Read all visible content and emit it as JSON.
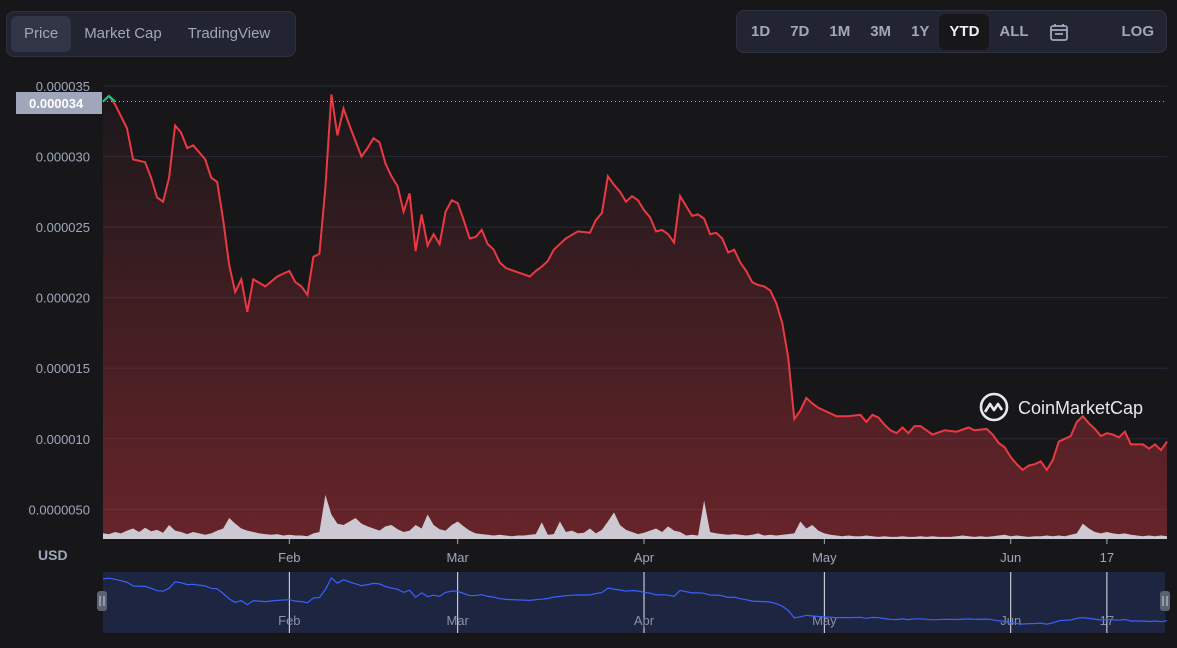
{
  "tabs": [
    {
      "label": "Price",
      "active": true
    },
    {
      "label": "Market Cap",
      "active": false
    },
    {
      "label": "TradingView",
      "active": false
    }
  ],
  "ranges": [
    {
      "label": "1D"
    },
    {
      "label": "7D"
    },
    {
      "label": "1M"
    },
    {
      "label": "3M"
    },
    {
      "label": "1Y"
    },
    {
      "label": "YTD",
      "active": true
    },
    {
      "label": "ALL"
    }
  ],
  "log_label": "LOG",
  "currency_label": "USD",
  "watermark": "CoinMarketCap",
  "current_price_label": "0.000034",
  "colors": {
    "line": "#ea3943",
    "line_up": "#16c784",
    "volume": "#d8dbe6",
    "navigator": "#3861fb",
    "background": "#17171a"
  },
  "chart_data": {
    "type": "line",
    "y_ticks": [
      "0.000035",
      "0.000030",
      "0.000025",
      "0.000020",
      "0.000015",
      "0.000010",
      "0.0000050"
    ],
    "y_tick_values": [
      3.5e-05,
      3e-05,
      2.5e-05,
      2e-05,
      1.5e-05,
      1e-05,
      5e-06
    ],
    "ylim": [
      2.9e-06,
      3.5e-05
    ],
    "x_ticks": [
      "Feb",
      "Mar",
      "Apr",
      "May",
      "Jun",
      "17"
    ],
    "x_tick_values": [
      31,
      59,
      90,
      120,
      151,
      167
    ],
    "xlim": [
      0,
      177
    ],
    "price_points": [
      [
        0,
        3.39e-05
      ],
      [
        1,
        3.43e-05
      ],
      [
        2,
        3.37e-05
      ],
      [
        4,
        3.2e-05
      ],
      [
        5,
        2.98e-05
      ],
      [
        7,
        2.96e-05
      ],
      [
        8,
        2.85e-05
      ],
      [
        9,
        2.71e-05
      ],
      [
        10,
        2.68e-05
      ],
      [
        11,
        2.85e-05
      ],
      [
        12,
        3.22e-05
      ],
      [
        13,
        3.17e-05
      ],
      [
        14,
        3.06e-05
      ],
      [
        15,
        3.08e-05
      ],
      [
        17,
        2.98e-05
      ],
      [
        18,
        2.85e-05
      ],
      [
        19,
        2.82e-05
      ],
      [
        20,
        2.55e-05
      ],
      [
        21,
        2.23e-05
      ],
      [
        22,
        2.04e-05
      ],
      [
        23,
        2.13e-05
      ],
      [
        24,
        1.9e-05
      ],
      [
        25,
        2.13e-05
      ],
      [
        27,
        2.08e-05
      ],
      [
        29,
        2.15e-05
      ],
      [
        31,
        2.19e-05
      ],
      [
        32,
        2.11e-05
      ],
      [
        33,
        2.08e-05
      ],
      [
        34,
        2.02e-05
      ],
      [
        35,
        2.29e-05
      ],
      [
        36,
        2.31e-05
      ],
      [
        37,
        2.78e-05
      ],
      [
        38,
        3.44e-05
      ],
      [
        39,
        3.15e-05
      ],
      [
        40,
        3.34e-05
      ],
      [
        41,
        3.22e-05
      ],
      [
        42,
        3.11e-05
      ],
      [
        43,
        3e-05
      ],
      [
        44,
        3.06e-05
      ],
      [
        45,
        3.13e-05
      ],
      [
        46,
        3.1e-05
      ],
      [
        47,
        2.95e-05
      ],
      [
        48,
        2.86e-05
      ],
      [
        49,
        2.79e-05
      ],
      [
        50,
        2.61e-05
      ],
      [
        51,
        2.74e-05
      ],
      [
        52,
        2.33e-05
      ],
      [
        53,
        2.59e-05
      ],
      [
        54,
        2.37e-05
      ],
      [
        55,
        2.45e-05
      ],
      [
        56,
        2.38e-05
      ],
      [
        57,
        2.61e-05
      ],
      [
        58,
        2.69e-05
      ],
      [
        59,
        2.67e-05
      ],
      [
        60,
        2.55e-05
      ],
      [
        61,
        2.42e-05
      ],
      [
        62,
        2.43e-05
      ],
      [
        63,
        2.48e-05
      ],
      [
        64,
        2.38e-05
      ],
      [
        65,
        2.34e-05
      ],
      [
        66,
        2.25e-05
      ],
      [
        67,
        2.21e-05
      ],
      [
        69,
        2.18e-05
      ],
      [
        71,
        2.15e-05
      ],
      [
        72,
        2.19e-05
      ],
      [
        73,
        2.22e-05
      ],
      [
        74,
        2.26e-05
      ],
      [
        75,
        2.34e-05
      ],
      [
        77,
        2.42e-05
      ],
      [
        79,
        2.47e-05
      ],
      [
        81,
        2.46e-05
      ],
      [
        82,
        2.55e-05
      ],
      [
        83,
        2.6e-05
      ],
      [
        84,
        2.86e-05
      ],
      [
        85,
        2.8e-05
      ],
      [
        86,
        2.75e-05
      ],
      [
        87,
        2.68e-05
      ],
      [
        88,
        2.72e-05
      ],
      [
        89,
        2.69e-05
      ],
      [
        90,
        2.62e-05
      ],
      [
        91,
        2.57e-05
      ],
      [
        92,
        2.47e-05
      ],
      [
        93,
        2.48e-05
      ],
      [
        94,
        2.45e-05
      ],
      [
        95,
        2.39e-05
      ],
      [
        96,
        2.72e-05
      ],
      [
        97,
        2.65e-05
      ],
      [
        98,
        2.58e-05
      ],
      [
        99,
        2.59e-05
      ],
      [
        100,
        2.56e-05
      ],
      [
        101,
        2.45e-05
      ],
      [
        102,
        2.46e-05
      ],
      [
        103,
        2.42e-05
      ],
      [
        104,
        2.32e-05
      ],
      [
        105,
        2.34e-05
      ],
      [
        106,
        2.25e-05
      ],
      [
        107,
        2.19e-05
      ],
      [
        108,
        2.11e-05
      ],
      [
        109,
        2.09e-05
      ],
      [
        110,
        2.08e-05
      ],
      [
        111,
        2.05e-05
      ],
      [
        112,
        1.96e-05
      ],
      [
        113,
        1.82e-05
      ],
      [
        114,
        1.57e-05
      ],
      [
        115,
        1.14e-05
      ],
      [
        116,
        1.2e-05
      ],
      [
        117,
        1.29e-05
      ],
      [
        118,
        1.25e-05
      ],
      [
        119,
        1.22e-05
      ],
      [
        121,
        1.18e-05
      ],
      [
        122,
        1.16e-05
      ],
      [
        124,
        1.16e-05
      ],
      [
        126,
        1.17e-05
      ],
      [
        127,
        1.12e-05
      ],
      [
        128,
        1.17e-05
      ],
      [
        129,
        1.15e-05
      ],
      [
        130,
        1.1e-05
      ],
      [
        131,
        1.06e-05
      ],
      [
        132,
        1.04e-05
      ],
      [
        133,
        1.08e-05
      ],
      [
        134,
        1.04e-05
      ],
      [
        135,
        1.09e-05
      ],
      [
        136,
        1.09e-05
      ],
      [
        138,
        1.03e-05
      ],
      [
        140,
        1.06e-05
      ],
      [
        142,
        1.05e-05
      ],
      [
        144,
        1.08e-05
      ],
      [
        145,
        1.06e-05
      ],
      [
        147,
        1.07e-05
      ],
      [
        148,
        1.03e-05
      ],
      [
        149,
        9.7e-06
      ],
      [
        150,
        9.4e-06
      ],
      [
        151,
        8.7e-06
      ],
      [
        152,
        8.2e-06
      ],
      [
        153,
        7.8e-06
      ],
      [
        154,
        8.1e-06
      ],
      [
        155,
        8.2e-06
      ],
      [
        156,
        8.4e-06
      ],
      [
        157,
        7.8e-06
      ],
      [
        158,
        8.5e-06
      ],
      [
        159,
        9.8e-06
      ],
      [
        160,
        1e-05
      ],
      [
        161,
        1.02e-05
      ],
      [
        162,
        1.12e-05
      ],
      [
        163,
        1.16e-05
      ],
      [
        164,
        1.11e-05
      ],
      [
        165,
        1.07e-05
      ],
      [
        166,
        1.02e-05
      ],
      [
        167,
        1.04e-05
      ],
      [
        168,
        1.03e-05
      ],
      [
        169,
        1.01e-05
      ],
      [
        170,
        1.05e-05
      ],
      [
        171,
        9.6e-06
      ],
      [
        172,
        9.6e-06
      ],
      [
        173,
        9.6e-06
      ],
      [
        174,
        9.3e-06
      ],
      [
        175,
        9.6e-06
      ],
      [
        176,
        9.2e-06
      ],
      [
        177,
        9.8e-06
      ]
    ],
    "volume_points": [
      [
        0,
        0.08
      ],
      [
        1,
        0.07
      ],
      [
        2,
        0.1
      ],
      [
        3,
        0.08
      ],
      [
        4,
        0.12
      ],
      [
        5,
        0.15
      ],
      [
        6,
        0.1
      ],
      [
        7,
        0.16
      ],
      [
        8,
        0.11
      ],
      [
        9,
        0.13
      ],
      [
        10,
        0.09
      ],
      [
        11,
        0.2
      ],
      [
        12,
        0.12
      ],
      [
        13,
        0.1
      ],
      [
        14,
        0.07
      ],
      [
        15,
        0.1
      ],
      [
        16,
        0.08
      ],
      [
        17,
        0.06
      ],
      [
        18,
        0.08
      ],
      [
        19,
        0.12
      ],
      [
        20,
        0.15
      ],
      [
        21,
        0.3
      ],
      [
        22,
        0.22
      ],
      [
        23,
        0.15
      ],
      [
        24,
        0.12
      ],
      [
        25,
        0.1
      ],
      [
        26,
        0.08
      ],
      [
        27,
        0.07
      ],
      [
        28,
        0.06
      ],
      [
        29,
        0.07
      ],
      [
        30,
        0.05
      ],
      [
        31,
        0.06
      ],
      [
        32,
        0.05
      ],
      [
        33,
        0.05
      ],
      [
        34,
        0.04
      ],
      [
        35,
        0.08
      ],
      [
        36,
        0.1
      ],
      [
        37,
        0.63
      ],
      [
        38,
        0.35
      ],
      [
        39,
        0.22
      ],
      [
        40,
        0.2
      ],
      [
        41,
        0.25
      ],
      [
        42,
        0.3
      ],
      [
        43,
        0.22
      ],
      [
        44,
        0.18
      ],
      [
        45,
        0.15
      ],
      [
        46,
        0.12
      ],
      [
        47,
        0.18
      ],
      [
        48,
        0.2
      ],
      [
        49,
        0.14
      ],
      [
        50,
        0.1
      ],
      [
        51,
        0.12
      ],
      [
        52,
        0.2
      ],
      [
        53,
        0.15
      ],
      [
        54,
        0.35
      ],
      [
        55,
        0.2
      ],
      [
        56,
        0.14
      ],
      [
        57,
        0.12
      ],
      [
        58,
        0.2
      ],
      [
        59,
        0.25
      ],
      [
        60,
        0.18
      ],
      [
        61,
        0.12
      ],
      [
        62,
        0.08
      ],
      [
        63,
        0.07
      ],
      [
        64,
        0.06
      ],
      [
        65,
        0.05
      ],
      [
        66,
        0.06
      ],
      [
        67,
        0.05
      ],
      [
        68,
        0.04
      ],
      [
        69,
        0.05
      ],
      [
        70,
        0.05
      ],
      [
        71,
        0.06
      ],
      [
        72,
        0.07
      ],
      [
        73,
        0.24
      ],
      [
        74,
        0.06
      ],
      [
        75,
        0.07
      ],
      [
        76,
        0.25
      ],
      [
        77,
        0.1
      ],
      [
        78,
        0.12
      ],
      [
        79,
        0.08
      ],
      [
        80,
        0.09
      ],
      [
        81,
        0.15
      ],
      [
        82,
        0.08
      ],
      [
        83,
        0.13
      ],
      [
        84,
        0.25
      ],
      [
        85,
        0.38
      ],
      [
        86,
        0.2
      ],
      [
        87,
        0.13
      ],
      [
        88,
        0.1
      ],
      [
        89,
        0.07
      ],
      [
        90,
        0.09
      ],
      [
        91,
        0.12
      ],
      [
        92,
        0.15
      ],
      [
        93,
        0.1
      ],
      [
        94,
        0.18
      ],
      [
        95,
        0.12
      ],
      [
        96,
        0.1
      ],
      [
        97,
        0.05
      ],
      [
        98,
        0.06
      ],
      [
        99,
        0.05
      ],
      [
        100,
        0.55
      ],
      [
        101,
        0.1
      ],
      [
        102,
        0.08
      ],
      [
        103,
        0.07
      ],
      [
        104,
        0.06
      ],
      [
        105,
        0.07
      ],
      [
        106,
        0.06
      ],
      [
        107,
        0.05
      ],
      [
        108,
        0.06
      ],
      [
        109,
        0.08
      ],
      [
        110,
        0.05
      ],
      [
        111,
        0.06
      ],
      [
        112,
        0.05
      ],
      [
        113,
        0.06
      ],
      [
        114,
        0.07
      ],
      [
        115,
        0.08
      ],
      [
        116,
        0.25
      ],
      [
        117,
        0.15
      ],
      [
        118,
        0.2
      ],
      [
        119,
        0.12
      ],
      [
        120,
        0.08
      ],
      [
        121,
        0.06
      ],
      [
        122,
        0.05
      ],
      [
        123,
        0.04
      ],
      [
        124,
        0.05
      ],
      [
        125,
        0.04
      ],
      [
        126,
        0.04
      ],
      [
        127,
        0.05
      ],
      [
        128,
        0.04
      ],
      [
        129,
        0.03
      ],
      [
        130,
        0.04
      ],
      [
        131,
        0.03
      ],
      [
        132,
        0.03
      ],
      [
        133,
        0.04
      ],
      [
        134,
        0.03
      ],
      [
        135,
        0.03
      ],
      [
        136,
        0.04
      ],
      [
        137,
        0.03
      ],
      [
        138,
        0.04
      ],
      [
        139,
        0.03
      ],
      [
        140,
        0.03
      ],
      [
        141,
        0.03
      ],
      [
        142,
        0.04
      ],
      [
        143,
        0.05
      ],
      [
        144,
        0.04
      ],
      [
        145,
        0.03
      ],
      [
        146,
        0.04
      ],
      [
        147,
        0.03
      ],
      [
        148,
        0.04
      ],
      [
        149,
        0.05
      ],
      [
        150,
        0.06
      ],
      [
        151,
        0.04
      ],
      [
        152,
        0.05
      ],
      [
        153,
        0.04
      ],
      [
        154,
        0.03
      ],
      [
        155,
        0.04
      ],
      [
        156,
        0.04
      ],
      [
        157,
        0.05
      ],
      [
        158,
        0.04
      ],
      [
        159,
        0.05
      ],
      [
        160,
        0.04
      ],
      [
        161,
        0.06
      ],
      [
        162,
        0.08
      ],
      [
        163,
        0.22
      ],
      [
        164,
        0.15
      ],
      [
        165,
        0.1
      ],
      [
        166,
        0.08
      ],
      [
        167,
        0.1
      ],
      [
        168,
        0.08
      ],
      [
        169,
        0.07
      ],
      [
        170,
        0.08
      ],
      [
        171,
        0.06
      ],
      [
        172,
        0.05
      ],
      [
        173,
        0.04
      ],
      [
        174,
        0.05
      ],
      [
        175,
        0.04
      ],
      [
        176,
        0.05
      ],
      [
        177,
        0.04
      ]
    ]
  }
}
